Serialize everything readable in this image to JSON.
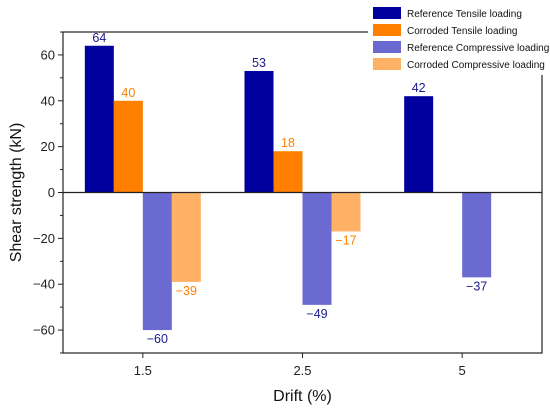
{
  "chart_data": {
    "type": "bar",
    "title": "",
    "xlabel": "Drift (%)",
    "ylabel": "Shear strength (kN)",
    "categories": [
      "1.5",
      "2.5",
      "5"
    ],
    "ylim": [
      -70,
      70
    ],
    "yticks": [
      -60,
      -40,
      -20,
      0,
      20,
      40,
      60
    ],
    "grid": false,
    "legend_position": "top-right",
    "series": [
      {
        "name": "Reference Tensile loading",
        "color": "#00009e",
        "label_color": "#1a1a8c",
        "values": [
          64,
          53,
          42
        ],
        "labels": [
          "64",
          "53",
          "42"
        ]
      },
      {
        "name": "Corroded Tensile loading",
        "color": "#ff7f00",
        "label_color": "#ff7f00",
        "values": [
          40,
          18,
          null
        ],
        "labels": [
          "40",
          "18",
          ""
        ]
      },
      {
        "name": "Reference Compressive loading",
        "color": "#6a6ad0",
        "label_color": "#1a1a8c",
        "values": [
          -60,
          -49,
          -37
        ],
        "labels": [
          "−60",
          "−49",
          "−37"
        ]
      },
      {
        "name": "Corroded Compressive loading",
        "color": "#ffb266",
        "label_color": "#ff7f00",
        "values": [
          -39,
          -17,
          null
        ],
        "labels": [
          "−39",
          "−17",
          ""
        ]
      }
    ]
  }
}
